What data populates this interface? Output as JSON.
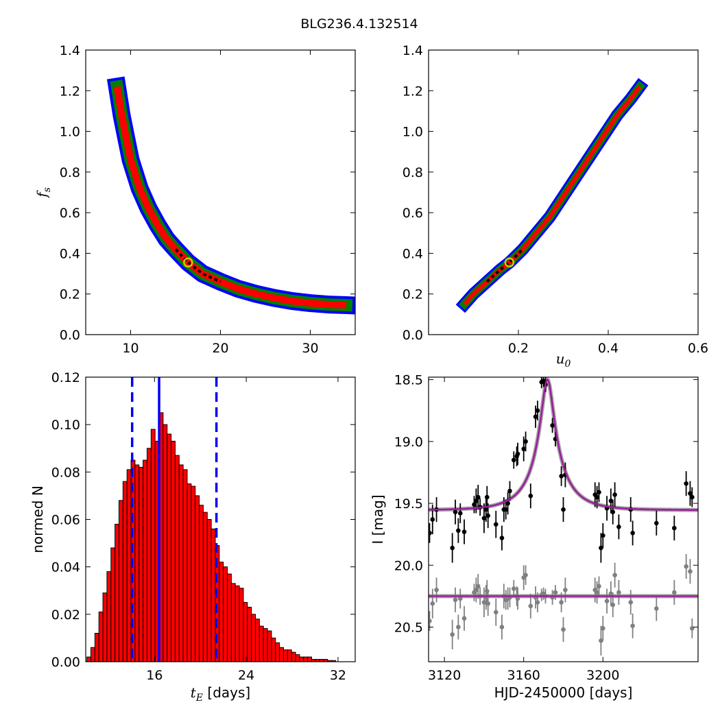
{
  "title": "BLG236.4.132514",
  "chart_data": [
    {
      "type": "heatmap",
      "ylabel": "f_s",
      "xlim": [
        5,
        35
      ],
      "ylim": [
        0.0,
        1.4
      ],
      "xticks": [
        10,
        20,
        30
      ],
      "yticks": [
        0.0,
        0.2,
        0.4,
        0.6,
        0.8,
        1.0,
        1.2,
        1.4
      ],
      "marker": {
        "x": 16.4,
        "y": 0.355
      },
      "colors": {
        "sigma3": "#0000ff",
        "sigma2": "#008000",
        "sigma1": "#ff0000",
        "best": "#000000",
        "marker": "#cccc00"
      },
      "curve": [
        [
          8.5,
          1.22
        ],
        [
          9.0,
          1.08
        ],
        [
          9.5,
          0.97
        ],
        [
          10.0,
          0.86
        ],
        [
          11.0,
          0.72
        ],
        [
          12.0,
          0.62
        ],
        [
          13.0,
          0.54
        ],
        [
          14.0,
          0.47
        ],
        [
          15.0,
          0.42
        ],
        [
          16.4,
          0.355
        ],
        [
          18.0,
          0.3
        ],
        [
          20.0,
          0.26
        ],
        [
          22.0,
          0.225
        ],
        [
          24.0,
          0.2
        ],
        [
          26.0,
          0.18
        ],
        [
          28.0,
          0.165
        ],
        [
          30.0,
          0.155
        ],
        [
          32.0,
          0.148
        ],
        [
          34.0,
          0.145
        ]
      ]
    },
    {
      "type": "heatmap",
      "xlabel": "u_0",
      "xlim": [
        0.0,
        0.6
      ],
      "ylim": [
        0.0,
        1.4
      ],
      "xticks": [
        0.2,
        0.4,
        0.6
      ],
      "yticks": [
        0.0,
        0.2,
        0.4,
        0.6,
        0.8,
        1.0,
        1.2,
        1.4
      ],
      "marker": {
        "x": 0.18,
        "y": 0.355
      },
      "colors": {
        "sigma3": "#0000ff",
        "sigma2": "#008000",
        "sigma1": "#ff0000",
        "best": "#000000",
        "marker": "#cccc00"
      },
      "curve": [
        [
          0.08,
          0.15
        ],
        [
          0.1,
          0.2
        ],
        [
          0.13,
          0.26
        ],
        [
          0.16,
          0.32
        ],
        [
          0.18,
          0.355
        ],
        [
          0.21,
          0.42
        ],
        [
          0.24,
          0.5
        ],
        [
          0.27,
          0.58
        ],
        [
          0.3,
          0.68
        ],
        [
          0.33,
          0.78
        ],
        [
          0.36,
          0.88
        ],
        [
          0.39,
          0.98
        ],
        [
          0.42,
          1.08
        ],
        [
          0.45,
          1.16
        ],
        [
          0.47,
          1.22
        ]
      ]
    },
    {
      "type": "bar",
      "xlabel": "[days]",
      "xlabel_symbol": "t_E",
      "ylabel": "normed N",
      "xlim": [
        10.0,
        33.5
      ],
      "ylim": [
        0.0,
        0.12
      ],
      "xticks": [
        16,
        24,
        32
      ],
      "yticks": [
        0.0,
        0.02,
        0.04,
        0.06,
        0.08,
        0.1,
        0.12
      ],
      "bar_color": "#ff0000",
      "median": 16.4,
      "lower": 14.05,
      "upper": 21.4,
      "line_color": "#0000ff",
      "bins": [
        10.1,
        10.45,
        10.8,
        11.15,
        11.5,
        11.85,
        12.2,
        12.55,
        12.9,
        13.25,
        13.6,
        13.95,
        14.3,
        14.65,
        15.0,
        15.35,
        15.7,
        16.05,
        16.4,
        16.75,
        17.1,
        17.45,
        17.8,
        18.15,
        18.5,
        18.85,
        19.2,
        19.55,
        19.9,
        20.25,
        20.6,
        20.95,
        21.3,
        21.65,
        22.0,
        22.35,
        22.7,
        23.05,
        23.4,
        23.75,
        24.1,
        24.45,
        24.8,
        25.15,
        25.5,
        25.85,
        26.2,
        26.55,
        26.9,
        27.25,
        27.6,
        27.95,
        28.3,
        28.65,
        29.0,
        29.35,
        29.7,
        30.05,
        30.4,
        30.75,
        31.1,
        31.45
      ],
      "values": [
        0.002,
        0.006,
        0.012,
        0.021,
        0.029,
        0.038,
        0.048,
        0.058,
        0.068,
        0.076,
        0.081,
        0.085,
        0.083,
        0.082,
        0.085,
        0.09,
        0.098,
        0.093,
        0.105,
        0.1,
        0.096,
        0.093,
        0.087,
        0.083,
        0.081,
        0.075,
        0.074,
        0.07,
        0.066,
        0.063,
        0.06,
        0.056,
        0.049,
        0.042,
        0.04,
        0.037,
        0.033,
        0.032,
        0.031,
        0.025,
        0.023,
        0.02,
        0.018,
        0.015,
        0.014,
        0.013,
        0.01,
        0.008,
        0.006,
        0.005,
        0.005,
        0.004,
        0.003,
        0.002,
        0.002,
        0.002,
        0.001,
        0.001,
        0.001,
        0.001,
        0.0005,
        0.0005
      ]
    },
    {
      "type": "scatter",
      "xlabel": "HJD-2450000 [days]",
      "ylabel": "I [mag]",
      "xlim": [
        3112,
        3248
      ],
      "ylim": [
        20.78,
        18.48
      ],
      "xticks": [
        3120,
        3160,
        3200
      ],
      "yticks": [
        18.5,
        19.0,
        19.5,
        20.0,
        20.5
      ],
      "model": {
        "t0": 3172,
        "tE": 16.4,
        "u0": 0.18,
        "fs": 0.355,
        "Ibase": 19.555,
        "color": "#9b1e9b"
      },
      "residual_model": {
        "I": 20.25,
        "color": "#9b1e9b"
      },
      "series": [
        {
          "color": "#000000",
          "points": [
            [
              3112.5,
              19.74,
              0.08
            ],
            [
              3114,
              19.63,
              0.12
            ],
            [
              3116,
              19.55,
              0.1
            ],
            [
              3124,
              19.86,
              0.12
            ],
            [
              3125.5,
              19.57,
              0.1
            ],
            [
              3127,
              19.72,
              0.1
            ],
            [
              3128,
              19.58,
              0.08
            ],
            [
              3130,
              19.73,
              0.1
            ],
            [
              3135,
              19.51,
              0.07
            ],
            [
              3136,
              19.48,
              0.1
            ],
            [
              3137,
              19.45,
              0.1
            ],
            [
              3138,
              19.53,
              0.07
            ],
            [
              3140,
              19.62,
              0.12
            ],
            [
              3141,
              19.55,
              0.1
            ],
            [
              3141.5,
              19.45,
              0.09
            ],
            [
              3142,
              19.6,
              0.1
            ],
            [
              3146,
              19.67,
              0.11
            ],
            [
              3149,
              19.78,
              0.1
            ],
            [
              3150,
              19.55,
              0.1
            ],
            [
              3151,
              19.55,
              0.08
            ],
            [
              3152,
              19.5,
              0.09
            ],
            [
              3153,
              19.4,
              0.08
            ],
            [
              3155,
              19.15,
              0.07
            ],
            [
              3156.5,
              19.12,
              0.08
            ],
            [
              3157,
              19.1,
              0.09
            ],
            [
              3160,
              19.06,
              0.1
            ],
            [
              3161,
              19.0,
              0.08
            ],
            [
              3163.5,
              19.44,
              0.1
            ],
            [
              3166,
              18.8,
              0.09
            ],
            [
              3167,
              18.75,
              0.08
            ],
            [
              3169,
              18.52,
              0.05
            ],
            [
              3170,
              18.51,
              0.05
            ],
            [
              3171,
              18.54,
              0.06
            ],
            [
              3174.5,
              18.87,
              0.06
            ],
            [
              3176,
              18.98,
              0.06
            ],
            [
              3179,
              19.28,
              0.08
            ],
            [
              3180,
              19.55,
              0.1
            ],
            [
              3181,
              19.27,
              0.1
            ],
            [
              3196,
              19.43,
              0.1
            ],
            [
              3197,
              19.45,
              0.09
            ],
            [
              3198,
              19.41,
              0.08
            ],
            [
              3199,
              19.86,
              0.12
            ],
            [
              3200,
              19.76,
              0.1
            ],
            [
              3202,
              19.54,
              0.1
            ],
            [
              3204,
              19.48,
              0.1
            ],
            [
              3205,
              19.57,
              0.1
            ],
            [
              3206,
              19.43,
              0.1
            ],
            [
              3208,
              19.69,
              0.1
            ],
            [
              3214,
              19.55,
              0.1
            ],
            [
              3215,
              19.74,
              0.1
            ],
            [
              3227,
              19.66,
              0.1
            ],
            [
              3236,
              19.7,
              0.1
            ],
            [
              3242,
              19.34,
              0.1
            ],
            [
              3244,
              19.42,
              0.1
            ],
            [
              3245,
              19.45,
              0.08
            ]
          ]
        },
        {
          "color": "#808080",
          "points": [
            [
              3112.5,
              20.45,
              0.08
            ],
            [
              3114,
              20.31,
              0.12
            ],
            [
              3116,
              20.2,
              0.1
            ],
            [
              3124,
              20.56,
              0.12
            ],
            [
              3125.5,
              20.28,
              0.1
            ],
            [
              3127,
              20.5,
              0.1
            ],
            [
              3128,
              20.27,
              0.08
            ],
            [
              3130,
              20.43,
              0.1
            ],
            [
              3135,
              20.22,
              0.07
            ],
            [
              3136,
              20.2,
              0.1
            ],
            [
              3137,
              20.17,
              0.1
            ],
            [
              3138,
              20.25,
              0.07
            ],
            [
              3140,
              20.3,
              0.12
            ],
            [
              3141,
              20.26,
              0.1
            ],
            [
              3141.5,
              20.21,
              0.09
            ],
            [
              3142,
              20.31,
              0.1
            ],
            [
              3146,
              20.38,
              0.11
            ],
            [
              3149,
              20.5,
              0.1
            ],
            [
              3150,
              20.25,
              0.1
            ],
            [
              3151,
              20.28,
              0.08
            ],
            [
              3152,
              20.27,
              0.09
            ],
            [
              3153,
              20.26,
              0.08
            ],
            [
              3155,
              20.19,
              0.07
            ],
            [
              3156.5,
              20.25,
              0.08
            ],
            [
              3157,
              20.27,
              0.09
            ],
            [
              3160,
              20.1,
              0.1
            ],
            [
              3161,
              20.08,
              0.08
            ],
            [
              3163.5,
              20.33,
              0.1
            ],
            [
              3166,
              20.26,
              0.09
            ],
            [
              3167,
              20.3,
              0.08
            ],
            [
              3169,
              20.24,
              0.05
            ],
            [
              3170,
              20.23,
              0.05
            ],
            [
              3171,
              20.25,
              0.06
            ],
            [
              3174.5,
              20.26,
              0.06
            ],
            [
              3176,
              20.22,
              0.06
            ],
            [
              3179,
              20.3,
              0.08
            ],
            [
              3180,
              20.52,
              0.1
            ],
            [
              3181,
              20.2,
              0.1
            ],
            [
              3196,
              20.2,
              0.1
            ],
            [
              3197,
              20.22,
              0.09
            ],
            [
              3198,
              20.17,
              0.08
            ],
            [
              3199,
              20.61,
              0.12
            ],
            [
              3200,
              20.51,
              0.1
            ],
            [
              3202,
              20.29,
              0.1
            ],
            [
              3204,
              20.23,
              0.1
            ],
            [
              3205,
              20.32,
              0.1
            ],
            [
              3206,
              20.08,
              0.1
            ],
            [
              3208,
              20.22,
              0.1
            ],
            [
              3214,
              20.3,
              0.1
            ],
            [
              3215,
              20.49,
              0.1
            ],
            [
              3227,
              20.35,
              0.1
            ],
            [
              3236,
              20.22,
              0.1
            ],
            [
              3242,
              20.01,
              0.1
            ],
            [
              3244,
              20.05,
              0.1
            ],
            [
              3245,
              20.51,
              0.08
            ]
          ]
        }
      ]
    }
  ]
}
